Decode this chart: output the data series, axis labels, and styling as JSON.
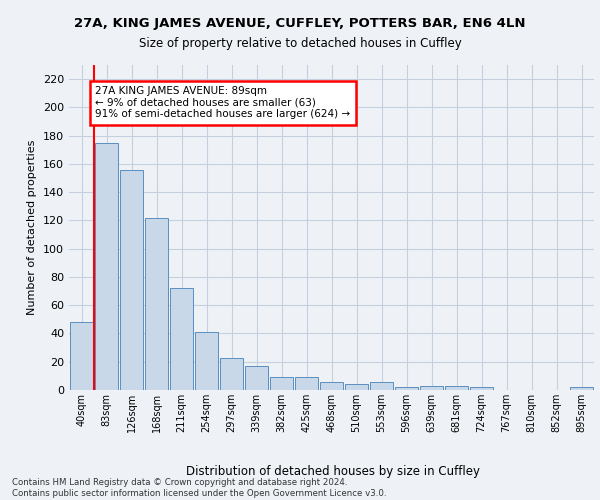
{
  "title1": "27A, KING JAMES AVENUE, CUFFLEY, POTTERS BAR, EN6 4LN",
  "title2": "Size of property relative to detached houses in Cuffley",
  "xlabel": "Distribution of detached houses by size in Cuffley",
  "ylabel": "Number of detached properties",
  "categories": [
    "40sqm",
    "83sqm",
    "126sqm",
    "168sqm",
    "211sqm",
    "254sqm",
    "297sqm",
    "339sqm",
    "382sqm",
    "425sqm",
    "468sqm",
    "510sqm",
    "553sqm",
    "596sqm",
    "639sqm",
    "681sqm",
    "724sqm",
    "767sqm",
    "810sqm",
    "852sqm",
    "895sqm"
  ],
  "values": [
    48,
    175,
    156,
    122,
    72,
    41,
    23,
    17,
    9,
    9,
    6,
    4,
    6,
    2,
    3,
    3,
    2,
    0,
    0,
    0,
    2
  ],
  "bar_color": "#c8d8e8",
  "bar_edge_color": "#5a8fc0",
  "red_line_x": 0.5,
  "annotation_text": "27A KING JAMES AVENUE: 89sqm\n← 9% of detached houses are smaller (63)\n91% of semi-detached houses are larger (624) →",
  "annotation_box_color": "white",
  "annotation_box_edge_color": "red",
  "ylim": [
    0,
    230
  ],
  "yticks": [
    0,
    20,
    40,
    60,
    80,
    100,
    120,
    140,
    160,
    180,
    200,
    220
  ],
  "footer_text": "Contains HM Land Registry data © Crown copyright and database right 2024.\nContains public sector information licensed under the Open Government Licence v3.0.",
  "bg_color": "#eef2f7",
  "plot_bg_color": "#eef2f7",
  "grid_color": "#c5cfe0"
}
